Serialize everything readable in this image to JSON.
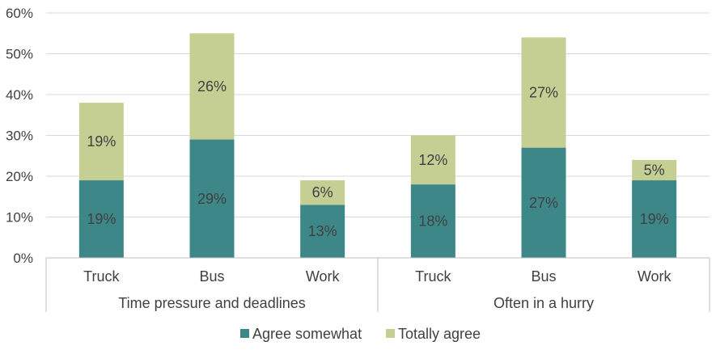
{
  "chart_data": {
    "type": "bar",
    "stacked": true,
    "groups": [
      {
        "label": "Time pressure and deadlines",
        "categories": [
          "Truck",
          "Bus",
          "Work"
        ]
      },
      {
        "label": "Often in a hurry",
        "categories": [
          "Truck",
          "Bus",
          "Work"
        ]
      }
    ],
    "categories": [
      "Truck",
      "Bus",
      "Work",
      "Truck",
      "Bus",
      "Work"
    ],
    "series": [
      {
        "name": "Agree somewhat",
        "color": "#3d8788",
        "values": [
          19,
          29,
          13,
          18,
          27,
          19
        ],
        "labels": [
          "19%",
          "29%",
          "13%",
          "18%",
          "27%",
          "19%"
        ]
      },
      {
        "name": "Totally agree",
        "color": "#c5cf94",
        "values": [
          19,
          26,
          6,
          12,
          27,
          5
        ],
        "labels": [
          "19%",
          "26%",
          "6%",
          "12%",
          "27%",
          "5%"
        ]
      }
    ],
    "totals_estimated": [
      37.7,
      54.9,
      18.7,
      30.5,
      53.4,
      24.0
    ],
    "yticks": [
      "0%",
      "10%",
      "20%",
      "30%",
      "40%",
      "50%",
      "60%"
    ],
    "ylim": [
      0,
      60
    ],
    "title": "",
    "xlabel": "",
    "ylabel": "",
    "grid": true,
    "legend_position": "bottom"
  }
}
